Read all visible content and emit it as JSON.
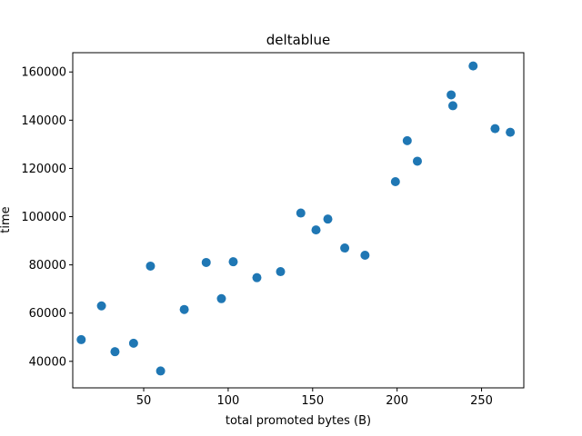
{
  "chart_data": {
    "type": "scatter",
    "title": "deltablue",
    "xlabel": "total promoted bytes (B)",
    "ylabel": "time",
    "xlim": [
      8,
      275
    ],
    "ylim": [
      29000,
      168000
    ],
    "xticks": [
      50,
      100,
      150,
      200,
      250
    ],
    "yticks": [
      40000,
      60000,
      80000,
      100000,
      120000,
      140000,
      160000
    ],
    "grid": false,
    "marker_color": "#1f77b4",
    "series": [
      {
        "points": [
          {
            "x": 13,
            "y": 49000
          },
          {
            "x": 25,
            "y": 63000
          },
          {
            "x": 33,
            "y": 44000
          },
          {
            "x": 44,
            "y": 47500
          },
          {
            "x": 54,
            "y": 79500
          },
          {
            "x": 60,
            "y": 36000
          },
          {
            "x": 74,
            "y": 61500
          },
          {
            "x": 87,
            "y": 81000
          },
          {
            "x": 96,
            "y": 66000
          },
          {
            "x": 103,
            "y": 81300
          },
          {
            "x": 117,
            "y": 74700
          },
          {
            "x": 131,
            "y": 77200
          },
          {
            "x": 143,
            "y": 101500
          },
          {
            "x": 152,
            "y": 94500
          },
          {
            "x": 159,
            "y": 99000
          },
          {
            "x": 169,
            "y": 87000
          },
          {
            "x": 181,
            "y": 84000
          },
          {
            "x": 199,
            "y": 114500
          },
          {
            "x": 206,
            "y": 131500
          },
          {
            "x": 212,
            "y": 123000
          },
          {
            "x": 232,
            "y": 150500
          },
          {
            "x": 233,
            "y": 146000
          },
          {
            "x": 245,
            "y": 162500
          },
          {
            "x": 258,
            "y": 136500
          },
          {
            "x": 267,
            "y": 135000
          }
        ]
      }
    ]
  }
}
